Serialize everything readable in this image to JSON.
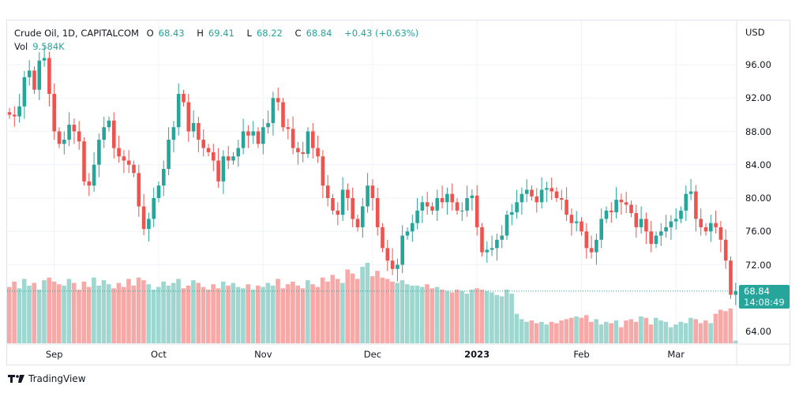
{
  "legend": {
    "symbol": "Crude Oil, 1D, CAPITALCOM",
    "o_label": "O",
    "open": "68.43",
    "h_label": "H",
    "high": "69.41",
    "l_label": "L",
    "low": "68.22",
    "c_label": "C",
    "close": "68.84",
    "change": "+0.43 (+0.63%)",
    "vol_label": "Vol",
    "vol": "9.584K"
  },
  "axis": {
    "currency": "USD"
  },
  "last_price": {
    "price": "68.84",
    "countdown": "14:08:49"
  },
  "footer": {
    "brand": "TradingView"
  },
  "colors": {
    "up": "#26a69a",
    "down": "#ef5350",
    "up_vol": "#9ed6d0",
    "down_vol": "#f7a9a7"
  },
  "chart_data": {
    "type": "candlestick",
    "title": "Crude Oil, 1D, CAPITALCOM",
    "ylim": [
      62,
      98.5
    ],
    "y_ticks": [
      "96.00",
      "92.00",
      "88.00",
      "84.00",
      "80.00",
      "76.00",
      "72.00",
      "64.00"
    ],
    "x_ticks": [
      {
        "label": "Sep",
        "index": 9
      },
      {
        "label": "Oct",
        "index": 30
      },
      {
        "label": "Nov",
        "index": 51
      },
      {
        "label": "Dec",
        "index": 73
      },
      {
        "label": "2023",
        "index": 94,
        "bold": true
      },
      {
        "label": "Feb",
        "index": 115
      },
      {
        "label": "Mar",
        "index": 134
      }
    ],
    "note": "open of each bar = previous close",
    "first_open": 90.3,
    "close": [
      90,
      89.8,
      91,
      94.5,
      95.3,
      93,
      96.5,
      96.8,
      92.5,
      88,
      86.5,
      87,
      88.8,
      88,
      86.8,
      82,
      81.5,
      84,
      87,
      88.5,
      89.3,
      86,
      85,
      84.5,
      84,
      83,
      79,
      76.3,
      77.5,
      80,
      81.5,
      83.5,
      87,
      88.5,
      92.5,
      91.5,
      88,
      89,
      87,
      86,
      85.5,
      84.5,
      82,
      85,
      84.5,
      85,
      86,
      88,
      87.5,
      88,
      86.5,
      88.5,
      89,
      92,
      91.5,
      88.5,
      88.3,
      86,
      85.5,
      85.3,
      88,
      86,
      85,
      81.5,
      80,
      78.5,
      78,
      81,
      80,
      77.5,
      76.5,
      79,
      81.5,
      80,
      76.5,
      74,
      72.5,
      71.5,
      72,
      75.5,
      76,
      77,
      78.5,
      79.5,
      79,
      78.5,
      80,
      79.5,
      80.5,
      79.5,
      78.5,
      78.5,
      80,
      80.3,
      76.5,
      73.5,
      73.8,
      74,
      75,
      75.5,
      78,
      78.3,
      79.5,
      80.5,
      81,
      80.2,
      79.5,
      81,
      81.2,
      80.8,
      80,
      79.8,
      78,
      77,
      77.2,
      76,
      74,
      73.5,
      75,
      77.5,
      78.5,
      78.3,
      79.8,
      79.5,
      79.2,
      78.2,
      76.5,
      77.5,
      76,
      74.5,
      75.5,
      76,
      76.5,
      77.2,
      77.5,
      78.5,
      80.5,
      80.8,
      77.5,
      76.5,
      76,
      77,
      76.5,
      75,
      72.5,
      68.4,
      68.84
    ],
    "volume_k": [
      210,
      230,
      205,
      240,
      215,
      225,
      200,
      235,
      245,
      230,
      220,
      215,
      240,
      225,
      200,
      230,
      210,
      245,
      215,
      235,
      220,
      205,
      225,
      210,
      240,
      215,
      245,
      235,
      220,
      200,
      210,
      230,
      215,
      225,
      240,
      205,
      215,
      235,
      225,
      210,
      200,
      220,
      205,
      230,
      215,
      225,
      210,
      205,
      220,
      200,
      215,
      210,
      225,
      215,
      240,
      205,
      220,
      230,
      215,
      205,
      235,
      220,
      210,
      245,
      230,
      255,
      240,
      225,
      275,
      260,
      240,
      285,
      300,
      250,
      270,
      245,
      240,
      230,
      225,
      235,
      220,
      215,
      215,
      210,
      220,
      205,
      210,
      200,
      195,
      190,
      200,
      195,
      185,
      200,
      205,
      200,
      195,
      190,
      180,
      175,
      200,
      185,
      110,
      90,
      80,
      85,
      75,
      80,
      70,
      80,
      75,
      85,
      90,
      95,
      100,
      95,
      105,
      80,
      90,
      70,
      80,
      75,
      85,
      60,
      85,
      90,
      80,
      100,
      95,
      70,
      95,
      85,
      80,
      60,
      70,
      80,
      75,
      95,
      90,
      75,
      85,
      75,
      110,
      125,
      120,
      130,
      10
    ]
  }
}
